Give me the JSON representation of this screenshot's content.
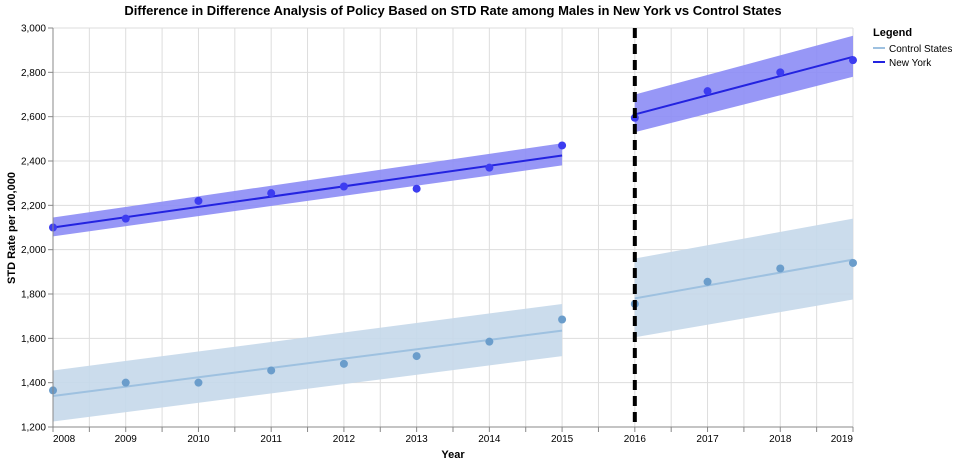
{
  "chart_data": {
    "type": "scatter",
    "title": "Difference in Difference Analysis of Policy Based on STD Rate among Males in New York vs Control States",
    "xlabel": "Year",
    "ylabel": "STD Rate per 100,000",
    "xlim": [
      2008,
      2019
    ],
    "ylim": [
      1200,
      3000
    ],
    "x_ticks": [
      "2008",
      "2009",
      "2010",
      "2011",
      "2012",
      "2013",
      "2014",
      "2015",
      "2016",
      "2017",
      "2018",
      "2019"
    ],
    "y_ticks": [
      "1,200",
      "1,400",
      "1,600",
      "1,800",
      "2,000",
      "2,200",
      "2,400",
      "2,600",
      "2,800",
      "3,000"
    ],
    "grid": true,
    "policy_year": 2016,
    "legend": {
      "title": "Legend",
      "position": "top-right",
      "entries": [
        {
          "label": "Control States",
          "color": "#9ec1e0"
        },
        {
          "label": "New York",
          "color": "#2323e0"
        }
      ]
    },
    "series": [
      {
        "name": "New York",
        "point_color": "#3c3cf0",
        "line_color": "#2323e0",
        "band_color": "#8c8cf5",
        "points": [
          {
            "x": 2008,
            "y": 2100
          },
          {
            "x": 2009,
            "y": 2140
          },
          {
            "x": 2010,
            "y": 2220
          },
          {
            "x": 2011,
            "y": 2255
          },
          {
            "x": 2012,
            "y": 2285
          },
          {
            "x": 2013,
            "y": 2275
          },
          {
            "x": 2014,
            "y": 2370
          },
          {
            "x": 2015,
            "y": 2470
          },
          {
            "x": 2016,
            "y": 2595
          },
          {
            "x": 2017,
            "y": 2715
          },
          {
            "x": 2018,
            "y": 2800
          },
          {
            "x": 2019,
            "y": 2855
          }
        ],
        "fits": [
          {
            "x": [
              2008,
              2015
            ],
            "y": [
              2100,
              2425
            ],
            "lower": [
              2060,
              2380
            ],
            "upper": [
              2145,
              2480
            ]
          },
          {
            "x": [
              2016,
              2019
            ],
            "y": [
              2610,
              2870
            ],
            "lower": [
              2530,
              2780
            ],
            "upper": [
              2700,
              2965
            ]
          }
        ]
      },
      {
        "name": "Control States",
        "point_color": "#6b9dcb",
        "line_color": "#9ec1e0",
        "band_color": "#c5d8ea",
        "points": [
          {
            "x": 2008,
            "y": 1365
          },
          {
            "x": 2009,
            "y": 1400
          },
          {
            "x": 2010,
            "y": 1400
          },
          {
            "x": 2011,
            "y": 1455
          },
          {
            "x": 2012,
            "y": 1485
          },
          {
            "x": 2013,
            "y": 1520
          },
          {
            "x": 2014,
            "y": 1585
          },
          {
            "x": 2015,
            "y": 1685
          },
          {
            "x": 2016,
            "y": 1755
          },
          {
            "x": 2017,
            "y": 1855
          },
          {
            "x": 2018,
            "y": 1915
          },
          {
            "x": 2019,
            "y": 1940
          }
        ],
        "fits": [
          {
            "x": [
              2008,
              2015
            ],
            "y": [
              1340,
              1635
            ],
            "lower": [
              1225,
              1520
            ],
            "upper": [
              1455,
              1755
            ]
          },
          {
            "x": [
              2016,
              2019
            ],
            "y": [
              1780,
              1955
            ],
            "lower": [
              1605,
              1775
            ],
            "upper": [
              1960,
              2140
            ]
          }
        ]
      }
    ]
  }
}
